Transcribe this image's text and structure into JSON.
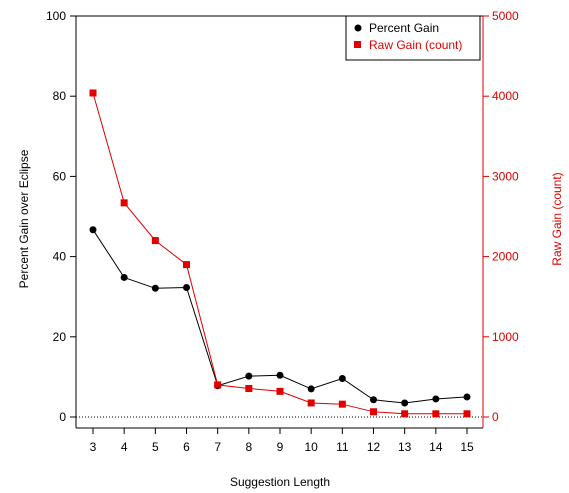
{
  "chart_data": {
    "type": "line",
    "title": "",
    "xlabel": "Suggestion Length",
    "ylabel": "Percent Gain over Eclipse",
    "y2label": "Raw Gain (count)",
    "x": [
      3,
      4,
      5,
      6,
      7,
      8,
      9,
      10,
      11,
      12,
      13,
      14,
      15
    ],
    "xlim": [
      3,
      15
    ],
    "ylim": [
      0,
      100
    ],
    "y2lim": [
      0,
      5000
    ],
    "yticks": [
      0,
      20,
      40,
      60,
      80,
      100
    ],
    "y2ticks": [
      0,
      1000,
      2000,
      3000,
      4000,
      5000
    ],
    "zero_reference_line": "dotted",
    "legend_position": "top-right",
    "grid": false,
    "series": [
      {
        "name": "Percent Gain",
        "axis": "left",
        "color": "#000000",
        "marker": "circle",
        "values": [
          46.7,
          34.8,
          32.1,
          32.3,
          7.8,
          10.2,
          10.4,
          7.0,
          9.6,
          4.3,
          3.5,
          4.5,
          5.0
        ]
      },
      {
        "name": "Raw Gain (count)",
        "axis": "right",
        "color": "#e00000",
        "marker": "square",
        "values": [
          4040,
          2670,
          2200,
          1900,
          400,
          355,
          320,
          175,
          160,
          65,
          40,
          40,
          40
        ]
      }
    ]
  }
}
